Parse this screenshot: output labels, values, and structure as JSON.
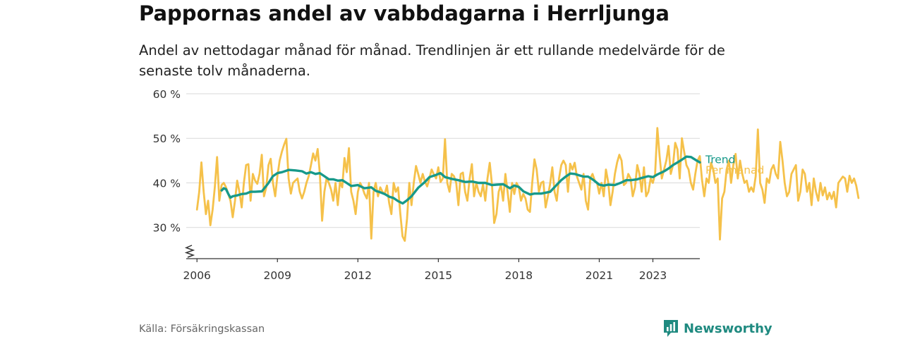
{
  "header": {
    "title": "Pappornas andel av vabbdagarna i Herrljunga",
    "subtitle": "Andel av nettodagar månad för månad. Trendlinjen är ett rullande medelvärde för de senaste tolv månaderna."
  },
  "footer": {
    "source": "Källa: Försäkringskassan",
    "brand": "Newsworthy"
  },
  "colors": {
    "monthly": "#f5c14a",
    "trend": "#17998a",
    "grid": "#d9d9d9",
    "axis": "#333333",
    "brand": "#1f8a80"
  },
  "icons": [
    "chart-logo-icon",
    "axis-break-icon"
  ],
  "chart_data": {
    "type": "line",
    "title": "Pappornas andel av vabbdagarna i Herrljunga",
    "xlabel": "",
    "ylabel": "",
    "x_range": [
      2005.6,
      2024.75
    ],
    "ylim": [
      23,
      60
    ],
    "y_ticks": [
      30,
      40,
      50,
      60
    ],
    "y_tick_labels": [
      "30 %",
      "40 %",
      "50 %",
      "60 %"
    ],
    "x_ticks": [
      2006,
      2009,
      2012,
      2015,
      2018,
      2021,
      2023
    ],
    "x_tick_labels": [
      "2006",
      "2009",
      "2012",
      "2015",
      "2018",
      "2021",
      "2023"
    ],
    "grid": true,
    "y_axis_break": true,
    "legend": "inline labels at line ends (right)",
    "series": [
      {
        "name": "Per månad",
        "color": "#f5c14a",
        "x_start": 2006.0,
        "x_step": 0.08333,
        "values": [
          34,
          38,
          44.6,
          38,
          33,
          36,
          30.5,
          34,
          39,
          45.8,
          36,
          39.5,
          40,
          39,
          37.5,
          36,
          32.3,
          36,
          40.5,
          38,
          34.5,
          40,
          44,
          44.2,
          36,
          42,
          40.5,
          39.8,
          42,
          46.3,
          37,
          39,
          44,
          45.4,
          40,
          37,
          41.5,
          45,
          47,
          48.6,
          49.9,
          41,
          37.6,
          40,
          40.5,
          41,
          38,
          36.5,
          38,
          40,
          41.5,
          44,
          46.6,
          45,
          47.6,
          42,
          31.5,
          38,
          41,
          40,
          38.5,
          36,
          40,
          35,
          40.2,
          39,
          45.6,
          42.4,
          47.8,
          38,
          36,
          33,
          38,
          40,
          39,
          37.5,
          36.5,
          40,
          27.5,
          38,
          40,
          37,
          39,
          38,
          37.5,
          39.4,
          35.5,
          33,
          40,
          38,
          39,
          33,
          28,
          27,
          32,
          40,
          35,
          40,
          43.8,
          42,
          40,
          42,
          40.3,
          39.2,
          41,
          43,
          41.9,
          41,
          43.5,
          40.2,
          41,
          49.8,
          40,
          38,
          42,
          41.5,
          40,
          35,
          42,
          42.3,
          38,
          36,
          41,
          44.2,
          37,
          40,
          38,
          37,
          39.7,
          36,
          41,
          44.5,
          39.6,
          31,
          33,
          38,
          39.5,
          36,
          42,
          38,
          33.5,
          40,
          37.5,
          40,
          39,
          36,
          37.5,
          36.5,
          34,
          33.5,
          40,
          45.3,
          43,
          38,
          40,
          40.3,
          34.5,
          37,
          39.7,
          43.5,
          38,
          36,
          41,
          44,
          45,
          44,
          38,
          44.3,
          43,
          44.5,
          41.5,
          40,
          38.5,
          42,
          36,
          34,
          41,
          42,
          40.5,
          40,
          37.6,
          40,
          37,
          43,
          40.2,
          35,
          38,
          42,
          44.6,
          46.3,
          45,
          39.5,
          40,
          42,
          41,
          37,
          39,
          44,
          42,
          38,
          43.5,
          37,
          38,
          41,
          40,
          42,
          52.3,
          46,
          41,
          43,
          45,
          48.3,
          42,
          44,
          49,
          47.5,
          41,
          50,
          47,
          44,
          43,
          40,
          38.5,
          42,
          45,
          46,
          40.7,
          37,
          41,
          40,
          44.5,
          43,
          40,
          41,
          27.3,
          36.5,
          38,
          43,
          45,
          40,
          44,
          46.5,
          41,
          45,
          42,
          40,
          40.5,
          38,
          39,
          38,
          41.5,
          52,
          40,
          38.5,
          35.5,
          41,
          40,
          43,
          44,
          42,
          41,
          49.2,
          45,
          40,
          37,
          38,
          42,
          43,
          44,
          36,
          38,
          43,
          42,
          38,
          40,
          35,
          41,
          38,
          36,
          40,
          37.2,
          39,
          36.3,
          37.8,
          36.4,
          38,
          34.5,
          40,
          40.7,
          41.4,
          41,
          38,
          41.6,
          40,
          41,
          39.4,
          36.6
        ]
      },
      {
        "name": "Trend",
        "color": "#17998a",
        "points": [
          [
            2006.92,
            38.3
          ],
          [
            2007.0,
            38.8
          ],
          [
            2007.08,
            38.6
          ],
          [
            2007.17,
            37.5
          ],
          [
            2007.25,
            36.7
          ],
          [
            2007.33,
            37.0
          ],
          [
            2007.5,
            37.2
          ],
          [
            2007.67,
            37.5
          ],
          [
            2007.83,
            37.6
          ],
          [
            2008.0,
            38.0
          ],
          [
            2008.17,
            38.0
          ],
          [
            2008.42,
            38.1
          ],
          [
            2008.67,
            40.0
          ],
          [
            2008.83,
            41.5
          ],
          [
            2009.0,
            42.2
          ],
          [
            2009.17,
            42.4
          ],
          [
            2009.42,
            42.9
          ],
          [
            2009.67,
            42.8
          ],
          [
            2009.92,
            42.6
          ],
          [
            2010.08,
            42.1
          ],
          [
            2010.25,
            42.4
          ],
          [
            2010.42,
            42.0
          ],
          [
            2010.58,
            42.2
          ],
          [
            2010.75,
            41.5
          ],
          [
            2010.92,
            40.8
          ],
          [
            2011.08,
            40.8
          ],
          [
            2011.25,
            40.5
          ],
          [
            2011.42,
            40.6
          ],
          [
            2011.58,
            40.0
          ],
          [
            2011.75,
            39.3
          ],
          [
            2012.0,
            39.5
          ],
          [
            2012.25,
            38.8
          ],
          [
            2012.5,
            39.0
          ],
          [
            2012.67,
            38.2
          ],
          [
            2012.83,
            37.9
          ],
          [
            2013.0,
            37.5
          ],
          [
            2013.17,
            36.9
          ],
          [
            2013.33,
            36.6
          ],
          [
            2013.5,
            35.9
          ],
          [
            2013.67,
            35.4
          ],
          [
            2013.83,
            36.1
          ],
          [
            2014.0,
            37.0
          ],
          [
            2014.25,
            38.9
          ],
          [
            2014.5,
            40.2
          ],
          [
            2014.67,
            41.3
          ],
          [
            2014.92,
            41.8
          ],
          [
            2015.08,
            42.2
          ],
          [
            2015.25,
            41.3
          ],
          [
            2015.5,
            40.9
          ],
          [
            2015.75,
            40.6
          ],
          [
            2016.0,
            40.2
          ],
          [
            2016.25,
            40.3
          ],
          [
            2016.5,
            40.0
          ],
          [
            2016.75,
            40.0
          ],
          [
            2017.0,
            39.5
          ],
          [
            2017.17,
            39.6
          ],
          [
            2017.42,
            39.7
          ],
          [
            2017.67,
            38.8
          ],
          [
            2017.83,
            39.4
          ],
          [
            2018.0,
            39.1
          ],
          [
            2018.17,
            38.1
          ],
          [
            2018.42,
            37.4
          ],
          [
            2018.58,
            37.6
          ],
          [
            2018.83,
            37.6
          ],
          [
            2019.0,
            37.8
          ],
          [
            2019.17,
            38.0
          ],
          [
            2019.42,
            39.6
          ],
          [
            2019.58,
            40.6
          ],
          [
            2019.75,
            41.4
          ],
          [
            2019.92,
            42.1
          ],
          [
            2020.08,
            42.0
          ],
          [
            2020.25,
            41.7
          ],
          [
            2020.42,
            41.4
          ],
          [
            2020.58,
            41.4
          ],
          [
            2020.75,
            40.8
          ],
          [
            2021.0,
            39.6
          ],
          [
            2021.17,
            39.4
          ],
          [
            2021.33,
            39.6
          ],
          [
            2021.58,
            39.5
          ],
          [
            2021.83,
            40.1
          ],
          [
            2022.0,
            40.6
          ],
          [
            2022.17,
            40.6
          ],
          [
            2022.42,
            40.8
          ],
          [
            2022.58,
            41.1
          ],
          [
            2022.83,
            41.5
          ],
          [
            2023.0,
            41.3
          ],
          [
            2023.17,
            41.9
          ],
          [
            2023.42,
            42.6
          ],
          [
            2023.58,
            43.2
          ],
          [
            2023.75,
            44.0
          ],
          [
            2023.92,
            44.6
          ],
          [
            2024.08,
            45.2
          ],
          [
            2024.25,
            45.9
          ],
          [
            2024.42,
            45.8
          ],
          [
            2024.58,
            45.2
          ],
          [
            2024.75,
            44.6
          ]
        ]
      }
    ]
  }
}
